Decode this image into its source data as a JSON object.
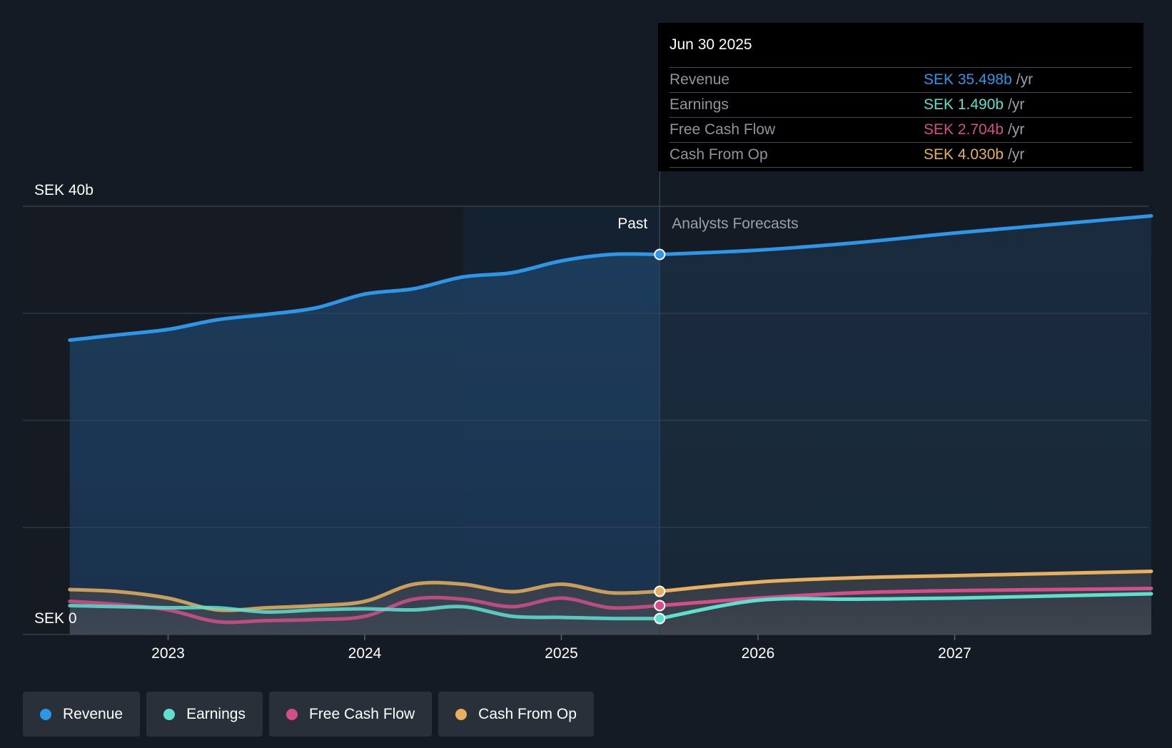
{
  "chart_data": {
    "type": "area",
    "y_unit": "SEK b",
    "ylim": [
      0,
      40
    ],
    "y_tick_labels": [
      {
        "value": 40,
        "label": "SEK 40b"
      },
      {
        "value": 0,
        "label": "SEK 0"
      }
    ],
    "gridlines": [
      0,
      10,
      20,
      30,
      40
    ],
    "x_ticks": [
      {
        "year": 2023,
        "label": "2023"
      },
      {
        "year": 2024,
        "label": "2024"
      },
      {
        "year": 2025,
        "label": "2025"
      },
      {
        "year": 2026,
        "label": "2026"
      },
      {
        "year": 2027,
        "label": "2027"
      }
    ],
    "xlim": [
      2022.3,
      2028.0
    ],
    "past_label": "Past",
    "forecast_label": "Analysts Forecasts",
    "series": [
      {
        "name": "Revenue",
        "color": "#2d96e6",
        "past": [
          [
            2022.5,
            27.5
          ],
          [
            2022.75,
            28.0
          ],
          [
            2023.0,
            28.5
          ],
          [
            2023.25,
            29.4
          ],
          [
            2023.5,
            29.9
          ],
          [
            2023.75,
            30.5
          ],
          [
            2024.0,
            31.8
          ],
          [
            2024.25,
            32.3
          ],
          [
            2024.5,
            33.4
          ],
          [
            2024.75,
            33.8
          ],
          [
            2025.0,
            34.9
          ],
          [
            2025.25,
            35.5
          ],
          [
            2025.5,
            35.5
          ]
        ],
        "forecast": [
          [
            2025.5,
            35.5
          ],
          [
            2026.0,
            35.9
          ],
          [
            2026.5,
            36.6
          ],
          [
            2027.0,
            37.5
          ],
          [
            2027.5,
            38.3
          ],
          [
            2028.0,
            39.1
          ]
        ]
      },
      {
        "name": "Cash From Op",
        "color": "#e8b05e",
        "past": [
          [
            2022.5,
            4.2
          ],
          [
            2022.75,
            4.0
          ],
          [
            2023.0,
            3.4
          ],
          [
            2023.25,
            2.3
          ],
          [
            2023.5,
            2.5
          ],
          [
            2023.75,
            2.7
          ],
          [
            2024.0,
            3.1
          ],
          [
            2024.25,
            4.7
          ],
          [
            2024.5,
            4.7
          ],
          [
            2024.75,
            4.0
          ],
          [
            2025.0,
            4.7
          ],
          [
            2025.25,
            3.9
          ],
          [
            2025.5,
            4.03
          ]
        ],
        "forecast": [
          [
            2025.5,
            4.03
          ],
          [
            2026.0,
            4.9
          ],
          [
            2026.5,
            5.3
          ],
          [
            2027.0,
            5.5
          ],
          [
            2027.5,
            5.7
          ],
          [
            2028.0,
            5.9
          ]
        ]
      },
      {
        "name": "Free Cash Flow",
        "color": "#d24f8a",
        "past": [
          [
            2022.5,
            3.1
          ],
          [
            2022.75,
            2.8
          ],
          [
            2023.0,
            2.3
          ],
          [
            2023.25,
            1.2
          ],
          [
            2023.5,
            1.3
          ],
          [
            2023.75,
            1.4
          ],
          [
            2024.0,
            1.7
          ],
          [
            2024.25,
            3.3
          ],
          [
            2024.5,
            3.3
          ],
          [
            2024.75,
            2.6
          ],
          [
            2025.0,
            3.4
          ],
          [
            2025.25,
            2.5
          ],
          [
            2025.5,
            2.704
          ]
        ],
        "forecast": [
          [
            2025.5,
            2.704
          ],
          [
            2026.0,
            3.4
          ],
          [
            2026.5,
            3.9
          ],
          [
            2027.0,
            4.1
          ],
          [
            2027.5,
            4.2
          ],
          [
            2028.0,
            4.3
          ]
        ]
      },
      {
        "name": "Earnings",
        "color": "#5ee0cf",
        "past": [
          [
            2022.5,
            2.7
          ],
          [
            2022.75,
            2.6
          ],
          [
            2023.0,
            2.5
          ],
          [
            2023.25,
            2.5
          ],
          [
            2023.5,
            2.1
          ],
          [
            2023.75,
            2.3
          ],
          [
            2024.0,
            2.4
          ],
          [
            2024.25,
            2.3
          ],
          [
            2024.5,
            2.6
          ],
          [
            2024.75,
            1.7
          ],
          [
            2025.0,
            1.6
          ],
          [
            2025.25,
            1.5
          ],
          [
            2025.5,
            1.49
          ]
        ],
        "forecast": [
          [
            2025.5,
            1.49
          ],
          [
            2026.0,
            3.2
          ],
          [
            2026.5,
            3.3
          ],
          [
            2027.0,
            3.4
          ],
          [
            2027.5,
            3.6
          ],
          [
            2028.0,
            3.8
          ]
        ]
      }
    ]
  },
  "tooltip": {
    "date": "Jun 30 2025",
    "rows": [
      {
        "label": "Revenue",
        "value": "SEK 35.498b",
        "unit": "/yr",
        "color": "#2d96e6"
      },
      {
        "label": "Earnings",
        "value": "SEK 1.490b",
        "unit": "/yr",
        "color": "#5ee0cf"
      },
      {
        "label": "Free Cash Flow",
        "value": "SEK 2.704b",
        "unit": "/yr",
        "color": "#d24f8a"
      },
      {
        "label": "Cash From Op",
        "value": "SEK 4.030b",
        "unit": "/yr",
        "color": "#e8b05e"
      }
    ]
  },
  "legend": [
    {
      "label": "Revenue",
      "color": "#2d96e6"
    },
    {
      "label": "Earnings",
      "color": "#5ee0cf"
    },
    {
      "label": "Free Cash Flow",
      "color": "#d24f8a"
    },
    {
      "label": "Cash From Op",
      "color": "#e8b05e"
    }
  ]
}
